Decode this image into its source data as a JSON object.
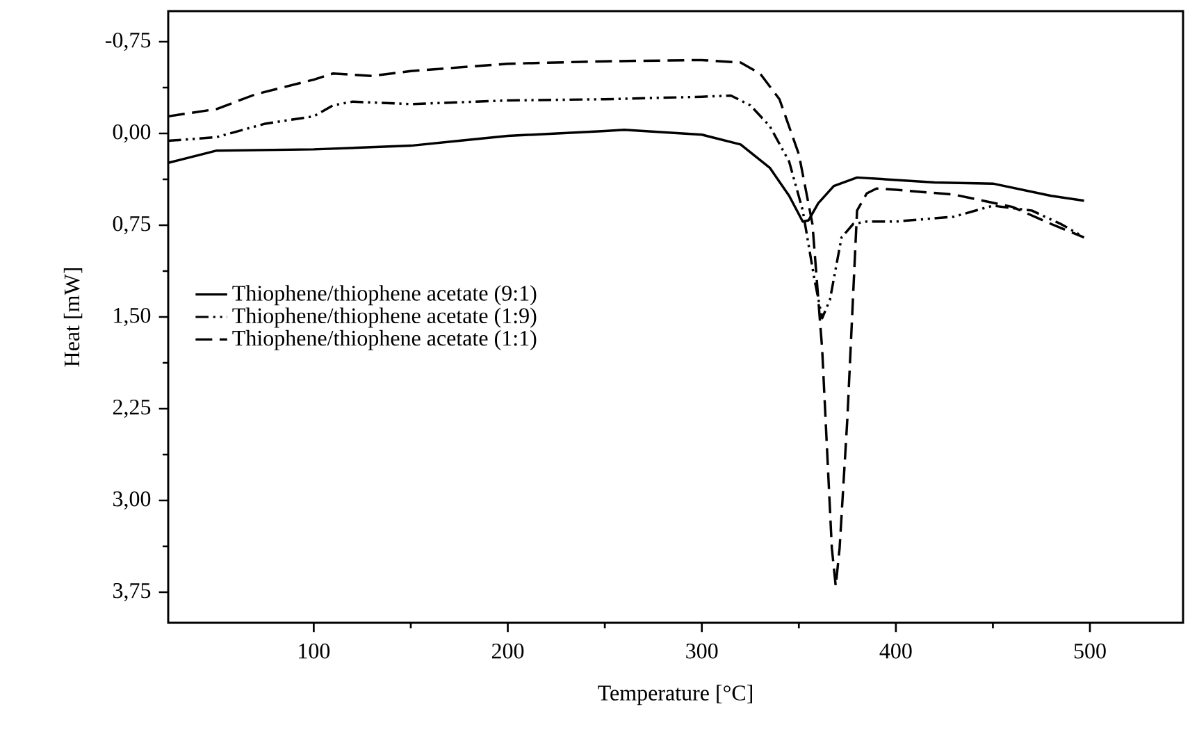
{
  "chart_data": {
    "type": "line",
    "xlabel": "Temperature [°C]",
    "ylabel": "Heat [mW]",
    "xlim": [
      25,
      548
    ],
    "ylim": [
      4.0,
      -1.0
    ],
    "xticks": [
      100,
      200,
      300,
      400,
      500
    ],
    "yticks": [
      {
        "value": -0.75,
        "label": "-0,75"
      },
      {
        "value": 0,
        "label": "0,00"
      },
      {
        "value": 0.75,
        "label": "0,75"
      },
      {
        "value": 1.5,
        "label": "1,50"
      },
      {
        "value": 2.25,
        "label": "2,25"
      },
      {
        "value": 3.0,
        "label": "3,00"
      },
      {
        "value": 3.75,
        "label": "3,75"
      }
    ],
    "grid": false,
    "legend": "left",
    "marker": "none",
    "series": [
      {
        "name": "Thiophene/thiophene acetate (9:1)",
        "color": "#000000",
        "line_style": "solid",
        "x": [
          25,
          50,
          100,
          150,
          175,
          200,
          250,
          260,
          300,
          320,
          335,
          345,
          352,
          355,
          360,
          368,
          380,
          420,
          450,
          480,
          497
        ],
        "values": [
          0.24,
          0.14,
          0.13,
          0.1,
          0.06,
          0.02,
          -0.02,
          -0.03,
          0.01,
          0.09,
          0.28,
          0.51,
          0.72,
          0.71,
          0.57,
          0.43,
          0.36,
          0.4,
          0.41,
          0.51,
          0.55
        ]
      },
      {
        "name": "Thiophene/thiophene acetate (1:9)",
        "color": "#000000",
        "line_style": "dashdotdotted",
        "x": [
          25,
          50,
          75,
          100,
          110,
          120,
          150,
          200,
          250,
          300,
          315,
          325,
          335,
          345,
          352,
          358,
          362,
          366,
          372,
          378,
          385,
          400,
          430,
          450,
          470,
          485,
          495
        ],
        "values": [
          0.06,
          0.03,
          -0.08,
          -0.14,
          -0.23,
          -0.26,
          -0.24,
          -0.27,
          -0.28,
          -0.3,
          -0.31,
          -0.23,
          -0.06,
          0.23,
          0.63,
          1.19,
          1.51,
          1.36,
          0.85,
          0.74,
          0.72,
          0.72,
          0.68,
          0.59,
          0.63,
          0.74,
          0.83
        ]
      },
      {
        "name": "Thiophene/thiophene acetate (1:1)",
        "color": "#000000",
        "line_style": "dashed",
        "x": [
          25,
          50,
          70,
          100,
          110,
          130,
          150,
          200,
          250,
          300,
          320,
          330,
          340,
          350,
          357,
          362,
          367,
          369,
          371,
          375,
          380,
          385,
          390,
          400,
          430,
          460,
          480,
          497
        ],
        "values": [
          -0.14,
          -0.2,
          -0.32,
          -0.44,
          -0.49,
          -0.47,
          -0.51,
          -0.57,
          -0.59,
          -0.6,
          -0.58,
          -0.49,
          -0.28,
          0.17,
          0.74,
          1.76,
          3.39,
          3.7,
          3.39,
          2.33,
          0.63,
          0.49,
          0.45,
          0.46,
          0.5,
          0.6,
          0.74,
          0.85
        ]
      }
    ]
  }
}
